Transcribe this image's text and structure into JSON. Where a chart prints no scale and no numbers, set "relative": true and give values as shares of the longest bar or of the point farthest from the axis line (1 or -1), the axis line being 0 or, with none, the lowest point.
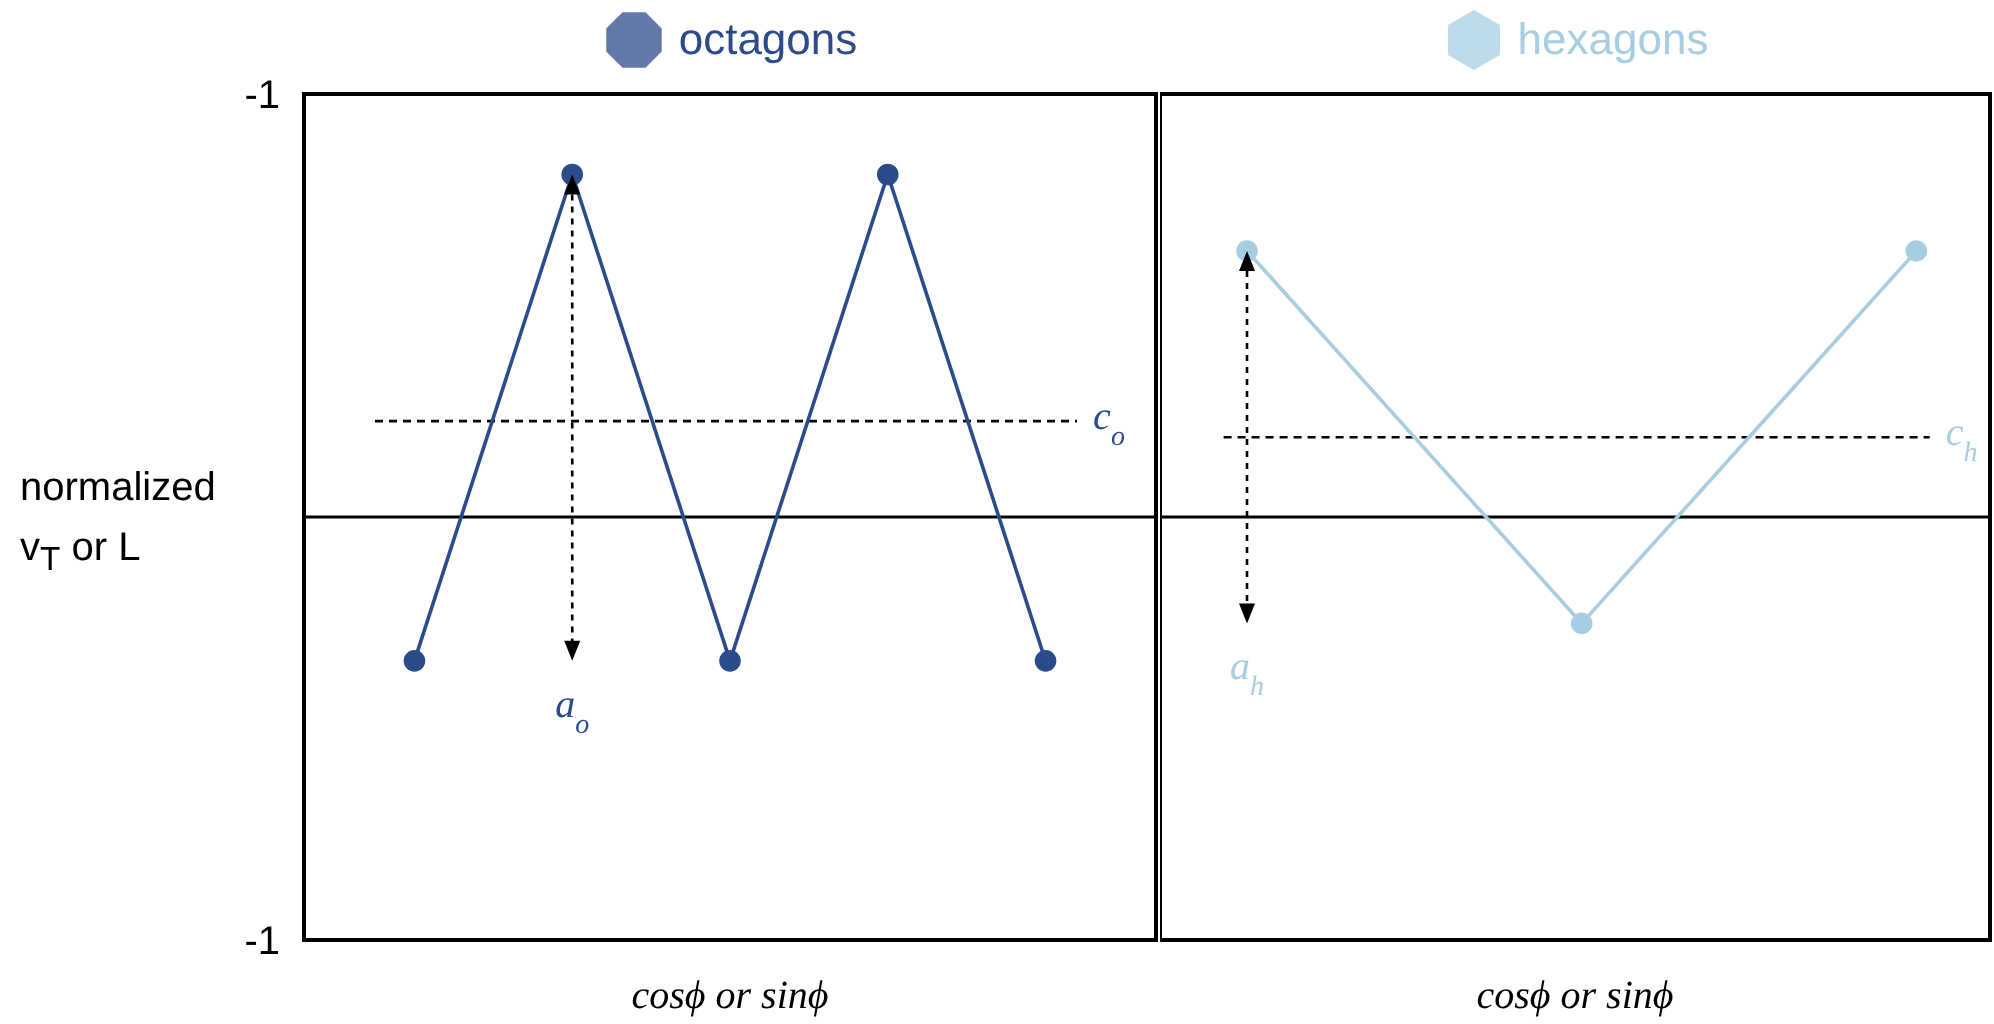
{
  "chart_data": [
    {
      "type": "line",
      "xlabel": "cosϕ or sinϕ",
      "ylabel": "normalized v$_{T}$ or L",
      "categories": [
        null,
        null,
        null,
        null,
        null
      ],
      "series": [
        {
          "name": "octagons",
          "color": "#2c4b8b",
          "values": [
            -0.42,
            1,
            -0.42,
            1,
            -0.42
          ]
        }
      ],
      "relative": true,
      "ref_lines": [
        {
          "axis": "y",
          "value": 0.28,
          "label": "c$_{o}$",
          "color": "#000000",
          "line_style": "dashed"
        }
      ],
      "annotations": [
        "a$_{o}$",
        "-1",
        "-1"
      ],
      "legend": "top",
      "marker": "circle"
    },
    {
      "type": "line",
      "xlabel": "cosϕ or sinϕ",
      "categories": [
        null,
        null,
        null
      ],
      "series": [
        {
          "name": "hexagons",
          "color": "#a7cde0",
          "values": [
            1,
            -0.4,
            1
          ]
        }
      ],
      "relative": true,
      "ref_lines": [
        {
          "axis": "y",
          "value": 0.3,
          "label": "c$_{h}$",
          "color": "#000000",
          "line_style": "dashed"
        }
      ],
      "annotations": [
        "a$_{h}$"
      ],
      "legend": "top",
      "marker": "circle"
    }
  ]
}
